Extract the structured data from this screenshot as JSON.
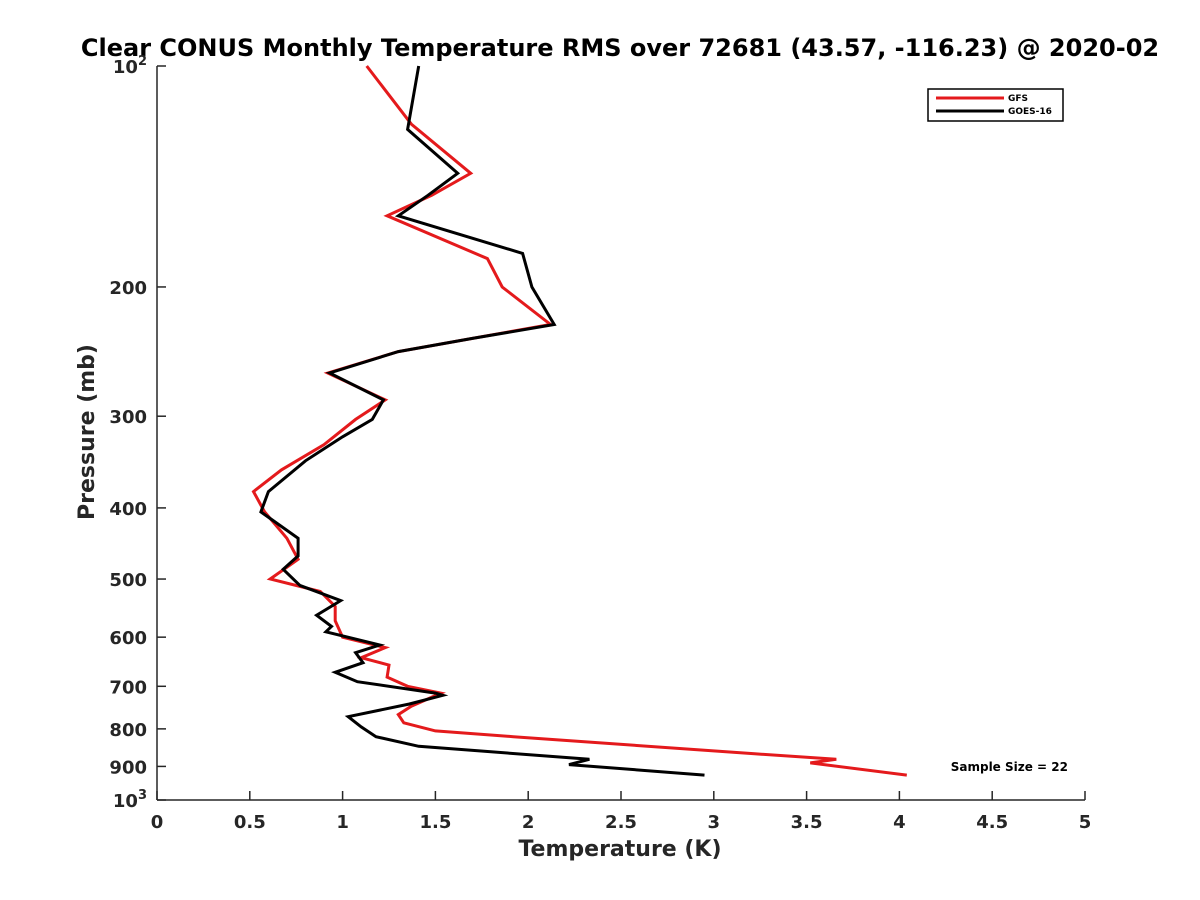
{
  "chart_data": {
    "type": "line",
    "title": "Clear CONUS Monthly Temperature RMS over 72681 (43.57, -116.23) @ 2020-02",
    "xlabel": "Temperature (K)",
    "ylabel": "Pressure (mb)",
    "xlim": [
      0,
      5
    ],
    "ylim": [
      100,
      1000
    ],
    "y_scale": "log",
    "y_reversed": true,
    "x_ticks": [
      0,
      0.5,
      1,
      1.5,
      2,
      2.5,
      3,
      3.5,
      4,
      4.5,
      5
    ],
    "x_tick_labels": [
      "0",
      "0.5",
      "1",
      "1.5",
      "2",
      "2.5",
      "3",
      "3.5",
      "4",
      "4.5",
      "5"
    ],
    "y_ticks": [
      100,
      200,
      300,
      400,
      500,
      600,
      700,
      800,
      900,
      1000
    ],
    "y_tick_labels": [
      {
        "base": "10",
        "exp": "2"
      },
      {
        "base": "200"
      },
      {
        "base": "300"
      },
      {
        "base": "400"
      },
      {
        "base": "500"
      },
      {
        "base": "600"
      },
      {
        "base": "700"
      },
      {
        "base": "800"
      },
      {
        "base": "900"
      },
      {
        "base": "10",
        "exp": "3"
      }
    ],
    "grid": false,
    "legend_position": "top-right",
    "annotation": "Sample Size = 22",
    "series": [
      {
        "name": "GFS",
        "color": "#e41a1c",
        "points": [
          [
            1.13,
            100
          ],
          [
            1.37,
            120
          ],
          [
            1.69,
            140
          ],
          [
            1.48,
            150
          ],
          [
            1.24,
            160
          ],
          [
            1.78,
            183
          ],
          [
            1.86,
            200
          ],
          [
            2.12,
            225
          ],
          [
            1.7,
            235
          ],
          [
            1.3,
            245
          ],
          [
            0.92,
            262
          ],
          [
            1.23,
            285
          ],
          [
            1.07,
            303
          ],
          [
            0.9,
            328
          ],
          [
            0.67,
            355
          ],
          [
            0.52,
            380
          ],
          [
            0.58,
            405
          ],
          [
            0.7,
            440
          ],
          [
            0.76,
            470
          ],
          [
            0.61,
            500
          ],
          [
            0.88,
            520
          ],
          [
            0.96,
            545
          ],
          [
            0.96,
            570
          ],
          [
            1.0,
            600
          ],
          [
            1.23,
            620
          ],
          [
            1.1,
            640
          ],
          [
            1.25,
            655
          ],
          [
            1.24,
            680
          ],
          [
            1.35,
            700
          ],
          [
            1.53,
            715
          ],
          [
            1.37,
            745
          ],
          [
            1.3,
            765
          ],
          [
            1.33,
            785
          ],
          [
            1.5,
            805
          ],
          [
            1.92,
            820
          ],
          [
            3.22,
            865
          ],
          [
            3.66,
            880
          ],
          [
            3.52,
            890
          ],
          [
            4.04,
            925
          ]
        ]
      },
      {
        "name": "GOES-16",
        "color": "#000000",
        "points": [
          [
            1.41,
            100
          ],
          [
            1.35,
            122
          ],
          [
            1.62,
            140
          ],
          [
            1.46,
            150
          ],
          [
            1.3,
            160
          ],
          [
            1.97,
            180
          ],
          [
            2.02,
            200
          ],
          [
            2.14,
            225
          ],
          [
            1.7,
            235
          ],
          [
            1.3,
            245
          ],
          [
            0.93,
            262
          ],
          [
            1.22,
            285
          ],
          [
            1.16,
            303
          ],
          [
            1.0,
            320
          ],
          [
            0.8,
            345
          ],
          [
            0.6,
            380
          ],
          [
            0.56,
            405
          ],
          [
            0.76,
            440
          ],
          [
            0.76,
            465
          ],
          [
            0.68,
            485
          ],
          [
            0.77,
            510
          ],
          [
            0.99,
            535
          ],
          [
            0.86,
            560
          ],
          [
            0.94,
            580
          ],
          [
            0.91,
            590
          ],
          [
            1.2,
            615
          ],
          [
            1.07,
            630
          ],
          [
            1.11,
            650
          ],
          [
            0.96,
            670
          ],
          [
            1.08,
            690
          ],
          [
            1.5,
            715
          ],
          [
            1.54,
            720
          ],
          [
            1.36,
            740
          ],
          [
            1.03,
            770
          ],
          [
            1.1,
            795
          ],
          [
            1.18,
            820
          ],
          [
            1.41,
            845
          ],
          [
            2.33,
            880
          ],
          [
            2.22,
            895
          ],
          [
            2.95,
            925
          ]
        ]
      }
    ]
  }
}
